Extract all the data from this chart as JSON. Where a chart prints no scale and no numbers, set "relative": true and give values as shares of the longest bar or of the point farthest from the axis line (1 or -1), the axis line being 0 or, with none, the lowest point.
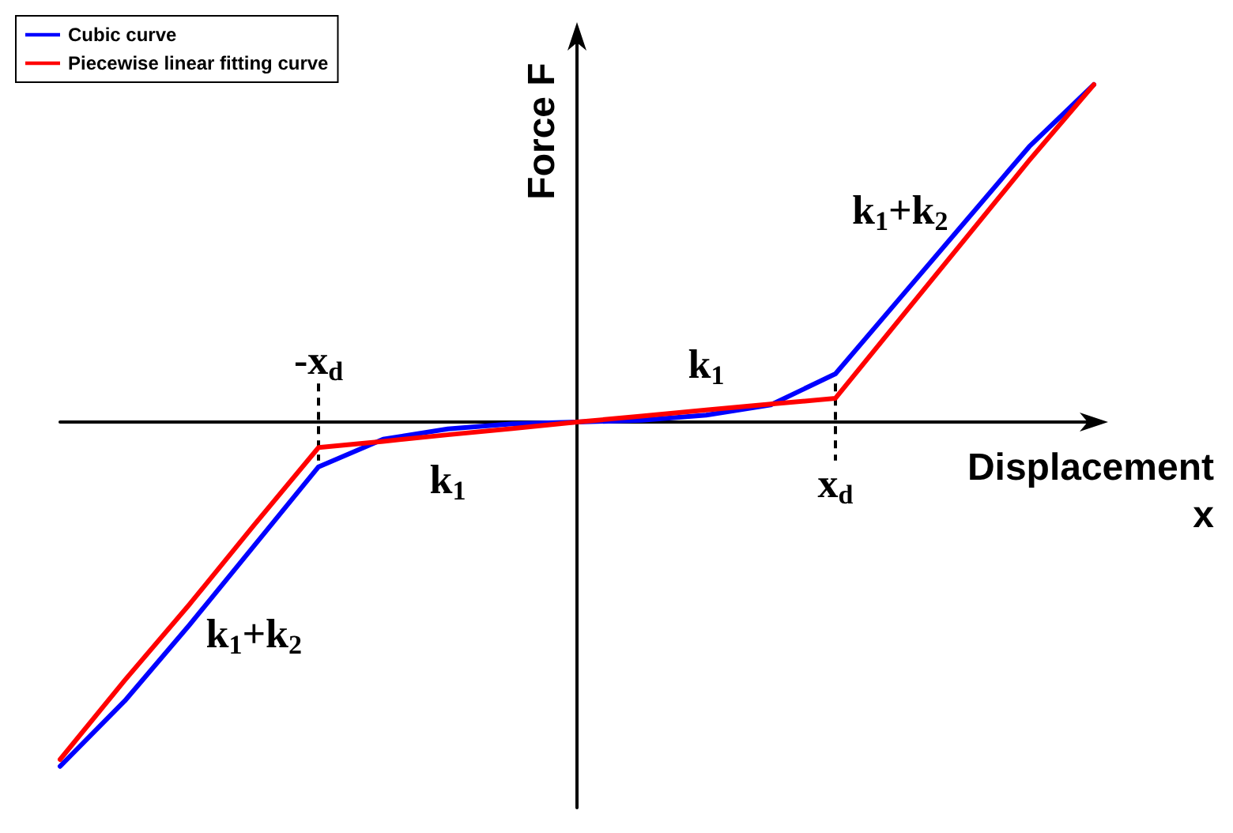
{
  "chart_data": {
    "type": "line",
    "relative": true,
    "xlabel": "Displacement\nx",
    "ylabel": "Force F",
    "legend": "top left",
    "grid": false,
    "marker": "none",
    "line_style": "solid",
    "categories": [
      null,
      null,
      null,
      null,
      null,
      null,
      null,
      null,
      null,
      null,
      null,
      null,
      null,
      null,
      null,
      null,
      null
    ],
    "series": [
      {
        "name": "Cubic curve",
        "color": "#0000ff",
        "values": [
          -1.0,
          -0.81,
          -0.59,
          -0.36,
          -0.13,
          -0.05,
          -0.02,
          -0.005,
          0,
          0.005,
          0.02,
          0.05,
          0.14,
          0.36,
          0.58,
          0.8,
          0.98
        ]
      },
      {
        "name": "Piecewise linear fitting curve",
        "color": "#ff0000",
        "values": [
          -0.98,
          -0.75,
          -0.53,
          -0.3,
          -0.074,
          -0.056,
          -0.037,
          -0.019,
          0,
          0.017,
          0.035,
          0.052,
          0.069,
          0.3,
          0.53,
          0.76,
          0.98
        ]
      }
    ],
    "annotations": [
      "k$_{1}$+k$_{2}$",
      "k$_{1}$+k$_{2}$",
      "k$_{1}$",
      "k$_{1}$",
      "x$_{d}$",
      "-x$_{d}$"
    ]
  }
}
